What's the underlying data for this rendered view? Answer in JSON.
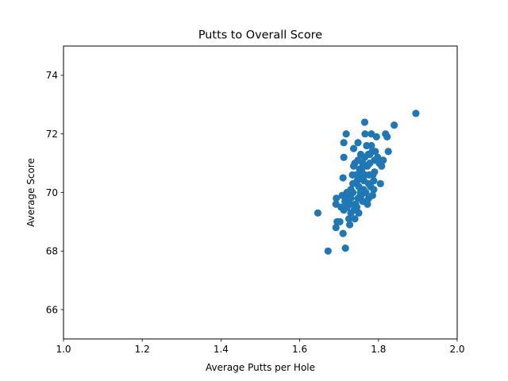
{
  "chart_data": {
    "type": "scatter",
    "title": "Putts to Overall Score",
    "xlabel": "Average Putts per Hole",
    "ylabel": "Average Score",
    "xlim": [
      1.0,
      2.0
    ],
    "ylim": [
      65.0,
      75.0
    ],
    "xticks": [
      "1.0",
      "1.2",
      "1.4",
      "1.6",
      "1.8",
      "2.0"
    ],
    "yticks": [
      "66",
      "68",
      "70",
      "72",
      "74"
    ],
    "xtick_values": [
      1.0,
      1.2,
      1.4,
      1.6,
      1.8,
      2.0
    ],
    "ytick_values": [
      66,
      68,
      70,
      72,
      74
    ],
    "grid": false,
    "marker_color": "#1f77b4",
    "points": [
      [
        1.646,
        69.3
      ],
      [
        1.672,
        68.0
      ],
      [
        1.692,
        68.8
      ],
      [
        1.695,
        69.0
      ],
      [
        1.702,
        69.0
      ],
      [
        1.692,
        69.6
      ],
      [
        1.693,
        69.8
      ],
      [
        1.705,
        69.5
      ],
      [
        1.71,
        68.6
      ],
      [
        1.716,
        68.1
      ],
      [
        1.708,
        69.9
      ],
      [
        1.712,
        69.4
      ],
      [
        1.715,
        69.7
      ],
      [
        1.72,
        69.5
      ],
      [
        1.72,
        70.0
      ],
      [
        1.71,
        70.5
      ],
      [
        1.712,
        71.2
      ],
      [
        1.712,
        71.7
      ],
      [
        1.718,
        72.0
      ],
      [
        1.725,
        69.1
      ],
      [
        1.73,
        69.3
      ],
      [
        1.728,
        69.6
      ],
      [
        1.73,
        69.8
      ],
      [
        1.735,
        70.0
      ],
      [
        1.735,
        70.3
      ],
      [
        1.727,
        68.9
      ],
      [
        1.74,
        69.1
      ],
      [
        1.737,
        70.9
      ],
      [
        1.74,
        71.0
      ],
      [
        1.737,
        71.5
      ],
      [
        1.748,
        71.7
      ],
      [
        1.745,
        69.5
      ],
      [
        1.748,
        69.8
      ],
      [
        1.75,
        70.2
      ],
      [
        1.752,
        70.5
      ],
      [
        1.752,
        70.8
      ],
      [
        1.755,
        71.3
      ],
      [
        1.75,
        69.3
      ],
      [
        1.76,
        69.7
      ],
      [
        1.762,
        70.1
      ],
      [
        1.763,
        70.4
      ],
      [
        1.765,
        70.6
      ],
      [
        1.765,
        70.9
      ],
      [
        1.765,
        71.2
      ],
      [
        1.766,
        72.0
      ],
      [
        1.765,
        72.4
      ],
      [
        1.772,
        69.6
      ],
      [
        1.775,
        69.8
      ],
      [
        1.775,
        70.3
      ],
      [
        1.776,
        70.6
      ],
      [
        1.778,
        71.0
      ],
      [
        1.778,
        71.3
      ],
      [
        1.782,
        71.6
      ],
      [
        1.782,
        72.0
      ],
      [
        1.785,
        69.9
      ],
      [
        1.788,
        70.1
      ],
      [
        1.788,
        70.4
      ],
      [
        1.79,
        70.7
      ],
      [
        1.79,
        71.1
      ],
      [
        1.792,
        71.4
      ],
      [
        1.795,
        71.9
      ],
      [
        1.805,
        70.3
      ],
      [
        1.808,
        70.9
      ],
      [
        1.812,
        71.1
      ],
      [
        1.818,
        72.0
      ],
      [
        1.822,
        71.9
      ],
      [
        1.825,
        71.4
      ],
      [
        1.84,
        72.3
      ],
      [
        1.895,
        72.7
      ],
      [
        1.742,
        69.6
      ],
      [
        1.744,
        70.6
      ],
      [
        1.748,
        71.1
      ],
      [
        1.756,
        69.9
      ],
      [
        1.758,
        70.7
      ],
      [
        1.768,
        70.0
      ],
      [
        1.77,
        71.6
      ],
      [
        1.772,
        70.9
      ],
      [
        1.78,
        70.2
      ],
      [
        1.784,
        71.4
      ],
      [
        1.786,
        70.6
      ],
      [
        1.73,
        70.1
      ],
      [
        1.722,
        69.9
      ],
      [
        1.754,
        70.0
      ],
      [
        1.76,
        71.0
      ],
      [
        1.774,
        71.3
      ],
      [
        1.738,
        69.4
      ],
      [
        1.734,
        70.6
      ],
      [
        1.746,
        70.4
      ],
      [
        1.798,
        71.2
      ],
      [
        1.802,
        71.0
      ]
    ]
  }
}
